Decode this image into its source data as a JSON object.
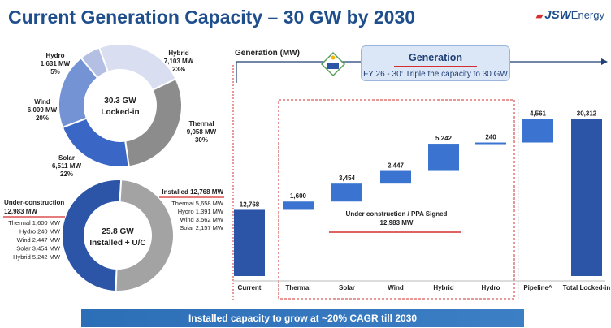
{
  "page": {
    "title": "Current Generation Capacity – 30 GW by 2030",
    "logo": {
      "mark": "JSW",
      "text": "Energy"
    },
    "banner": "Installed capacity to grow at ~20% CAGR till 2030"
  },
  "donut1": {
    "center_line1": "30.3 GW",
    "center_line2": "Locked-in",
    "segments": [
      {
        "name": "Hybrid",
        "mw": "7,103 MW",
        "pct": "23%",
        "value": 7103,
        "color": "#d9def0"
      },
      {
        "name": "Thermal",
        "mw": "9,058 MW",
        "pct": "30%",
        "value": 9058,
        "color": "#8c8c8c"
      },
      {
        "name": "Solar",
        "mw": "6,511 MW",
        "pct": "22%",
        "value": 6511,
        "color": "#3a67c6"
      },
      {
        "name": "Wind",
        "mw": "6,009 MW",
        "pct": "20%",
        "value": 6009,
        "color": "#7493d4"
      },
      {
        "name": "Hydro",
        "mw": "1,631 MW",
        "pct": "5%",
        "value": 1631,
        "color": "#b3c0e4"
      }
    ]
  },
  "donut2": {
    "center_line1": "25.8 GW",
    "center_line2": "Installed + U/C",
    "installed": {
      "title": "Installed 12,768 MW",
      "value": 12768,
      "color": "#a3a3a3",
      "items": [
        "Thermal 5,658 MW",
        "Hydro 1,391 MW",
        "Wind 3,562 MW",
        "Solar 2,157 MW"
      ]
    },
    "under_construction": {
      "title_line1": "Under-construction",
      "title_line2": "12,983 MW",
      "value": 12983,
      "color": "#2c55a8",
      "items": [
        "Thermal 1,600 MW",
        "Hydro 240 MW",
        "Wind 2,447 MW",
        "Solar 3,454 MW",
        "Hybrid 5,242 MW"
      ]
    }
  },
  "generation": {
    "axis_label": "Generation (MW)",
    "box_title": "Generation",
    "box_subtitle": "FY 26 - 30: Triple the capacity to 30 GW",
    "uc_label_line1": "Under construction / PPA Signed",
    "uc_label_line2": "12,983 MW"
  },
  "chart_data": {
    "type": "bar",
    "subtype": "waterfall",
    "ylabel": "Generation (MW)",
    "categories": [
      "Current",
      "Thermal",
      "Solar",
      "Wind",
      "Hybrid",
      "Hydro",
      "Pipeline^",
      "Total Locked-in"
    ],
    "values": [
      12768,
      1600,
      3454,
      2447,
      5242,
      240,
      4561,
      30312
    ],
    "value_labels": [
      "12,768",
      "1,600",
      "3,454",
      "2,447",
      "5,242",
      "240",
      "4,561",
      "30,312"
    ],
    "kinds": [
      "total",
      "delta",
      "delta",
      "delta",
      "delta",
      "delta",
      "delta",
      "total"
    ],
    "colors": {
      "total": "#2c55a8",
      "delta": "#3a74d0"
    },
    "ylim": [
      0,
      31000
    ]
  }
}
